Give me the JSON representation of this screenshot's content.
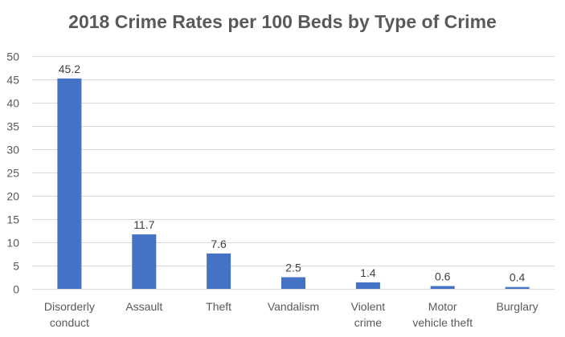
{
  "chart_data": {
    "type": "bar",
    "title": "2018 Crime Rates per 100 Beds by Type of Crime",
    "xlabel": "",
    "ylabel": "",
    "categories": [
      [
        "Disorderly",
        "conduct"
      ],
      [
        "Assault"
      ],
      [
        "Theft"
      ],
      [
        "Vandalism"
      ],
      [
        "Violent",
        "crime"
      ],
      [
        "Motor",
        "vehicle theft"
      ],
      [
        "Burglary"
      ]
    ],
    "values": [
      45.2,
      11.7,
      7.6,
      2.5,
      1.4,
      0.6,
      0.4
    ],
    "data_labels": [
      "45.2",
      "11.7",
      "7.6",
      "2.5",
      "1.4",
      "0.6",
      "0.4"
    ],
    "ylim": [
      0,
      50
    ],
    "yticks": [
      0,
      5,
      10,
      15,
      20,
      25,
      30,
      35,
      40,
      45,
      50
    ],
    "grid": true,
    "legend": "none",
    "bar_color": "#4472c4"
  }
}
